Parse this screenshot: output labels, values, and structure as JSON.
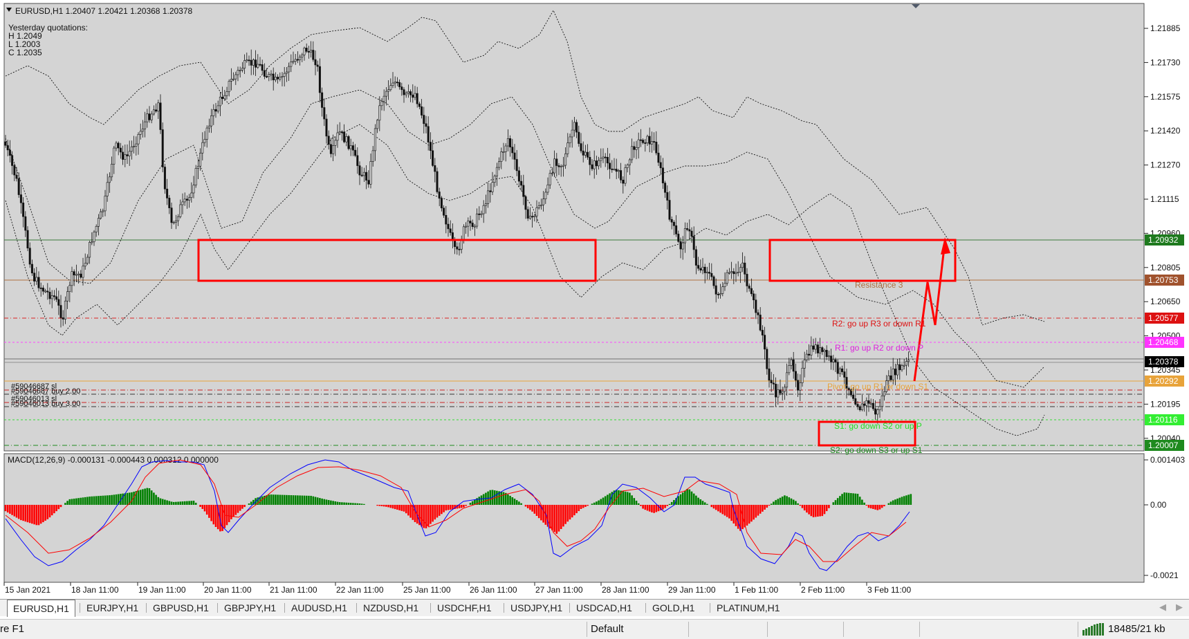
{
  "chart": {
    "title": "EURUSD,H1  1.20407 1.20421 1.20368 1.20378",
    "yesterday": [
      "Yesterday quotations:",
      "H 1.2049",
      "L 1.2003",
      "C 1.2035"
    ],
    "macd_label": "MACD(12,26,9) -0.000131 -0.000443 0.000312 0.000000",
    "price_ticks": [
      "1.21885",
      "1.21730",
      "1.21575",
      "1.21420",
      "1.21270",
      "1.21115",
      "1.20960",
      "1.20805",
      "1.20650",
      "1.20500",
      "1.20345",
      "1.20195",
      "1.20040"
    ],
    "macd_ticks": [
      "0.001403",
      "0.00",
      "-0.0021"
    ],
    "date_ticks": [
      "15 Jan 2021",
      "18 Jan 11:00",
      "19 Jan 11:00",
      "20 Jan 11:00",
      "21 Jan 11:00",
      "22 Jan 11:00",
      "25 Jan 11:00",
      "26 Jan 11:00",
      "27 Jan 11:00",
      "28 Jan 11:00",
      "29 Jan 11:00",
      "1 Feb 11:00",
      "2 Feb 11:00",
      "3 Feb 11:00"
    ],
    "level_tags": [
      {
        "text": "1.20932",
        "bg": "#1e7a1e",
        "fg": "#ffffff"
      },
      {
        "text": "1.20753",
        "bg": "#a0522d",
        "fg": "#ffffff"
      },
      {
        "text": "1.20577",
        "bg": "#dd1111",
        "fg": "#ffffff"
      },
      {
        "text": "1.20468",
        "bg": "#ff33ff",
        "fg": "#ffffff"
      },
      {
        "text": "1.20378",
        "bg": "#000000",
        "fg": "#ffffff"
      },
      {
        "text": "1.20292",
        "bg": "#e8a33a",
        "fg": "#ffffff"
      },
      {
        "text": "1.20116",
        "bg": "#33ee33",
        "fg": "#ffffff"
      },
      {
        "text": "1.20007",
        "bg": "#1e8a1e",
        "fg": "#ffffff"
      }
    ],
    "level_labels": {
      "r3": "Resistance 3",
      "r2": "R2: go up R3 or down R1",
      "r1": "R1: go up R2 or down P",
      "pivot": "Pivot: go up R1 or down S1",
      "s1": "S1: go down S2 or up P",
      "s2": "S2: go down S3 or up S1"
    },
    "orders": [
      "#59046687 sl",
      "#59046687 buy 2.00",
      "#59046013 sl",
      "#59046013 buy 3.00"
    ],
    "colors": {
      "bg": "#d4d4d4",
      "candle_up": "#000000",
      "band": "#000000",
      "annotation": "#ff0000",
      "macd_hist_up": "#008000",
      "macd_hist_down": "#ff0000",
      "macd_line": "#0000ff",
      "signal_line": "#ff0000"
    }
  },
  "tabs": [
    "EURUSD,H1",
    "EURJPY,H1",
    "GBPUSD,H1",
    "GBPJPY,H1",
    "AUDUSD,H1",
    "NZDUSD,H1",
    "USDCHF,H1",
    "USDJPY,H1",
    "USDCAD,H1",
    "GOLD,H1",
    "PLATINUM,H1"
  ],
  "status": {
    "help": "re F1",
    "profile": "Default",
    "traffic": "18485/21 kb"
  }
}
